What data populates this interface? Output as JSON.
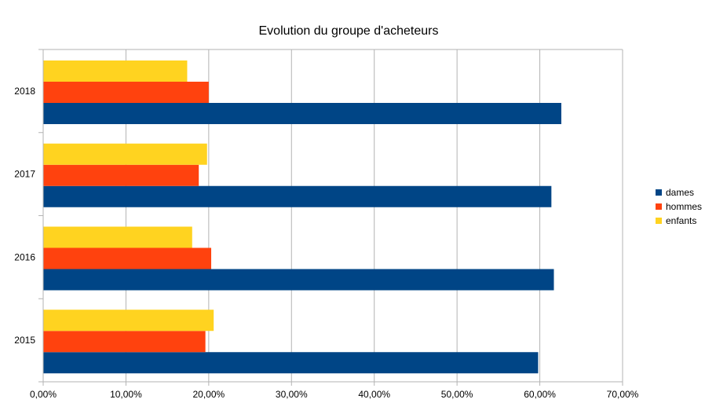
{
  "chart_data": {
    "type": "bar",
    "orientation": "horizontal",
    "title": "Evolution du groupe d'acheteurs",
    "categories": [
      "2015",
      "2016",
      "2017",
      "2018"
    ],
    "series": [
      {
        "name": "dames",
        "color": "#004586",
        "values": [
          59.8,
          61.7,
          61.4,
          62.6
        ]
      },
      {
        "name": "hommes",
        "color": "#ff420e",
        "values": [
          19.6,
          20.3,
          18.8,
          20.0
        ]
      },
      {
        "name": "enfants",
        "color": "#ffd320",
        "values": [
          20.6,
          18.0,
          19.8,
          17.4
        ]
      }
    ],
    "xlim": [
      0,
      70
    ],
    "xticks": [
      0,
      10,
      20,
      30,
      40,
      50,
      60,
      70
    ],
    "xtick_labels": [
      "0,00%",
      "10,00%",
      "20,00%",
      "30,00%",
      "40,00%",
      "50,00%",
      "60,00%",
      "70,00%"
    ],
    "xlabel": "",
    "ylabel": "",
    "grid": true,
    "legend_position": "right"
  }
}
